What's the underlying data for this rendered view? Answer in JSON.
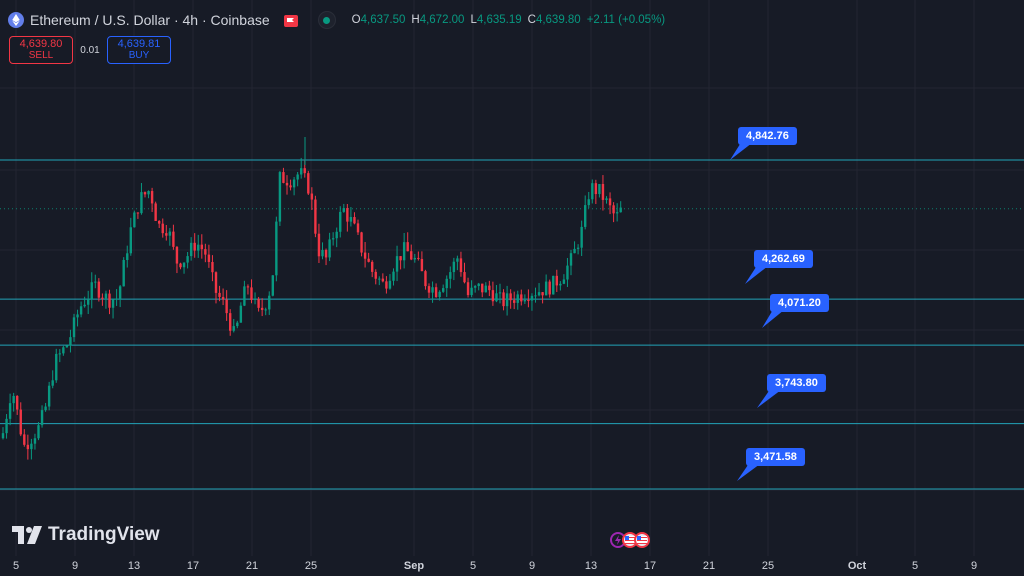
{
  "header": {
    "symbol": "Ethereum / U.S. Dollar · 4h · Coinbase",
    "ohlc": [
      {
        "key": "O",
        "value": "4,637.50"
      },
      {
        "key": "H",
        "value": "4,672.00"
      },
      {
        "key": "L",
        "value": "4,635.19"
      },
      {
        "key": "C",
        "value": "4,639.80"
      }
    ],
    "change": "+2.11 (+0.05%)"
  },
  "trade": {
    "sell_price": "4,639.80",
    "sell_label": "SELL",
    "spread": "0.01",
    "buy_price": "4,639.81",
    "buy_label": "BUY"
  },
  "watermark": "TradingView",
  "colors": {
    "background": "#171b26",
    "up": "#089981",
    "down": "#f23645",
    "level_line": "#22a4b8",
    "label_bg": "#2962ff"
  },
  "icons": [
    "ethereum-icon",
    "flag-icon",
    "market-status-icon",
    "tradingview-logo-icon",
    "event-icons"
  ],
  "chart_data": {
    "type": "candlestick",
    "timeframe": "4h",
    "x_ticks": [
      "5",
      "9",
      "13",
      "17",
      "21",
      "25",
      "Sep",
      "5",
      "9",
      "13",
      "17",
      "21",
      "25",
      "Oct",
      "5",
      "9"
    ],
    "horizontal_levels": [
      4842.76,
      4262.69,
      4071.2,
      3743.8,
      3471.58
    ],
    "level_labels": [
      "4,842.76",
      "4,262.69",
      "4,071.20",
      "3,743.80",
      "3,471.58"
    ],
    "current_price": 4639.8,
    "path_points": [
      [
        0,
        3640
      ],
      [
        12,
        3900
      ],
      [
        24,
        3650
      ],
      [
        38,
        3720
      ],
      [
        45,
        3800
      ],
      [
        55,
        4000
      ],
      [
        68,
        4080
      ],
      [
        80,
        4230
      ],
      [
        95,
        4320
      ],
      [
        108,
        4260
      ],
      [
        118,
        4270
      ],
      [
        130,
        4540
      ],
      [
        140,
        4680
      ],
      [
        150,
        4720
      ],
      [
        158,
        4570
      ],
      [
        168,
        4560
      ],
      [
        176,
        4420
      ],
      [
        185,
        4430
      ],
      [
        196,
        4500
      ],
      [
        205,
        4460
      ],
      [
        215,
        4300
      ],
      [
        225,
        4230
      ],
      [
        235,
        4100
      ],
      [
        242,
        4260
      ],
      [
        248,
        4320
      ],
      [
        258,
        4200
      ],
      [
        265,
        4240
      ],
      [
        272,
        4330
      ],
      [
        280,
        4770
      ],
      [
        290,
        4760
      ],
      [
        300,
        4790
      ],
      [
        310,
        4720
      ],
      [
        318,
        4470
      ],
      [
        326,
        4430
      ],
      [
        334,
        4540
      ],
      [
        343,
        4640
      ],
      [
        352,
        4580
      ],
      [
        362,
        4470
      ],
      [
        372,
        4380
      ],
      [
        384,
        4320
      ],
      [
        395,
        4420
      ],
      [
        405,
        4470
      ],
      [
        416,
        4420
      ],
      [
        426,
        4330
      ],
      [
        436,
        4300
      ],
      [
        448,
        4360
      ],
      [
        458,
        4440
      ],
      [
        468,
        4280
      ],
      [
        478,
        4310
      ],
      [
        490,
        4300
      ],
      [
        502,
        4250
      ],
      [
        514,
        4270
      ],
      [
        526,
        4290
      ],
      [
        540,
        4300
      ],
      [
        552,
        4320
      ],
      [
        562,
        4360
      ],
      [
        572,
        4430
      ],
      [
        582,
        4550
      ],
      [
        590,
        4730
      ],
      [
        600,
        4710
      ],
      [
        610,
        4640
      ],
      [
        616,
        4600
      ],
      [
        622,
        4640
      ]
    ]
  },
  "xaxis": {
    "ticks": [
      {
        "label": "5",
        "bold": false
      },
      {
        "label": "9",
        "bold": false
      },
      {
        "label": "13",
        "bold": false
      },
      {
        "label": "17",
        "bold": false
      },
      {
        "label": "21",
        "bold": false
      },
      {
        "label": "25",
        "bold": false
      },
      {
        "label": "Sep",
        "bold": true
      },
      {
        "label": "5",
        "bold": false
      },
      {
        "label": "9",
        "bold": false
      },
      {
        "label": "13",
        "bold": false
      },
      {
        "label": "17",
        "bold": false
      },
      {
        "label": "21",
        "bold": false
      },
      {
        "label": "25",
        "bold": false
      },
      {
        "label": "Oct",
        "bold": true
      },
      {
        "label": "5",
        "bold": false
      },
      {
        "label": "9",
        "bold": false
      }
    ]
  }
}
